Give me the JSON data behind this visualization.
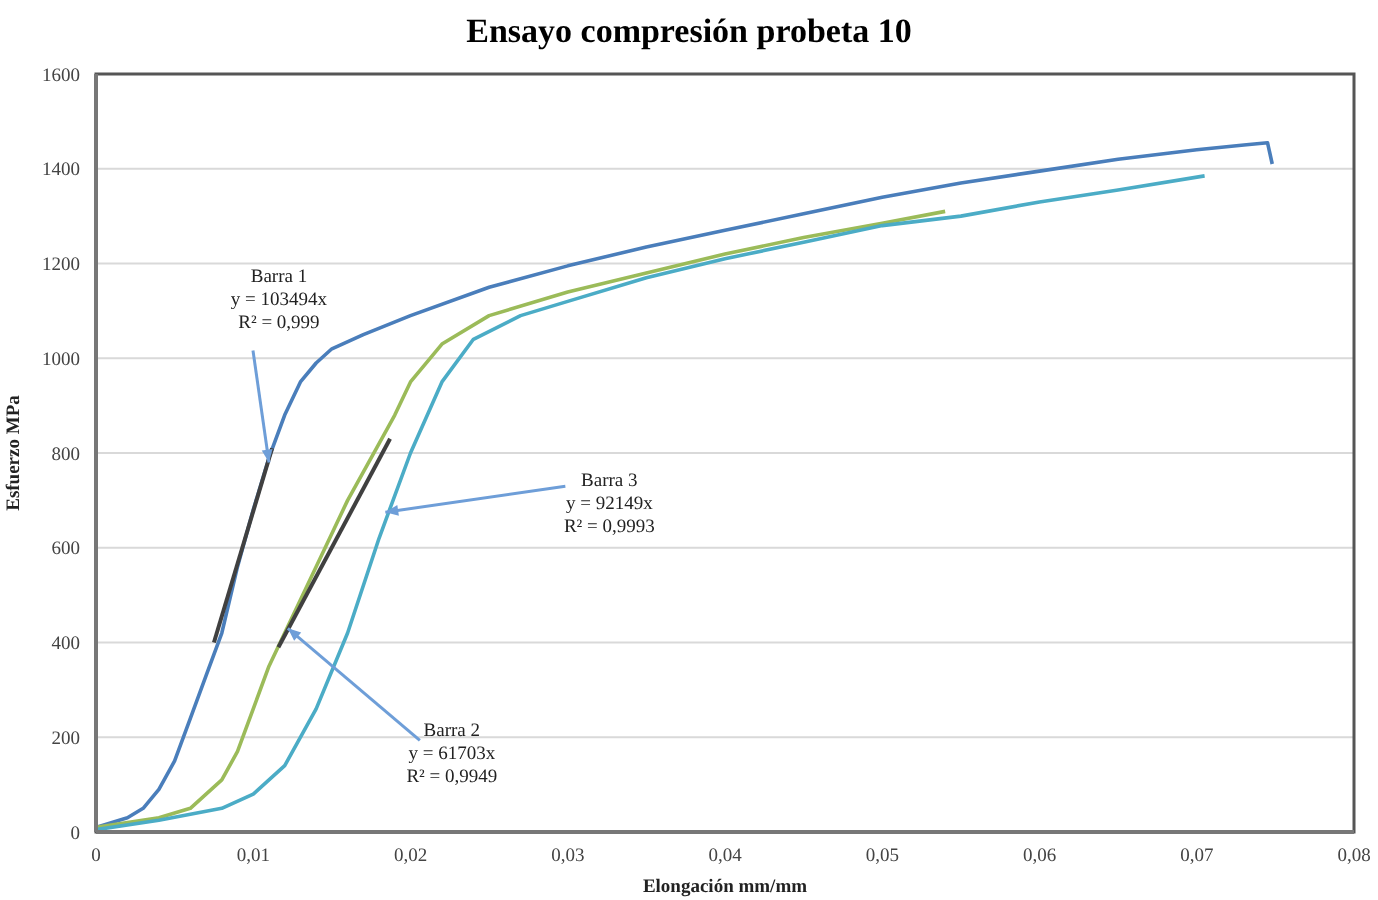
{
  "chart_data": {
    "type": "line",
    "title": "Ensayo compresión probeta 10",
    "xlabel": "Elongación mm/mm",
    "ylabel": "Esfuerzo MPa",
    "xlim": [
      0,
      0.08
    ],
    "xticks": [
      {
        "value": 0,
        "label": "0"
      },
      {
        "value": 0.01,
        "label": "0,01"
      },
      {
        "value": 0.02,
        "label": "0,02"
      },
      {
        "value": 0.03,
        "label": "0,03"
      },
      {
        "value": 0.04,
        "label": "0,04"
      },
      {
        "value": 0.05,
        "label": "0,05"
      },
      {
        "value": 0.06,
        "label": "0,06"
      },
      {
        "value": 0.07,
        "label": "0,07"
      },
      {
        "value": 0.08,
        "label": "0,08"
      }
    ],
    "ylim": [
      0,
      1600
    ],
    "yticks": [
      0,
      200,
      400,
      600,
      800,
      1000,
      1200,
      1400,
      1600
    ],
    "grid": "y",
    "legend": false,
    "marker": "none",
    "line_style": "solid",
    "series": [
      {
        "color": "#4a7ebb",
        "x": [
          0,
          0.002,
          0.003,
          0.004,
          0.005,
          0.006,
          0.007,
          0.008,
          0.009,
          0.01,
          0.011,
          0.012,
          0.013,
          0.014,
          0.015,
          0.017,
          0.02,
          0.025,
          0.03,
          0.035,
          0.04,
          0.045,
          0.05,
          0.055,
          0.06,
          0.065,
          0.07,
          0.073,
          0.0745,
          0.0748
        ],
        "values": [
          10,
          30,
          50,
          90,
          150,
          240,
          330,
          420,
          560,
          680,
          790,
          880,
          950,
          990,
          1020,
          1050,
          1090,
          1150,
          1195,
          1235,
          1270,
          1305,
          1340,
          1370,
          1395,
          1420,
          1440,
          1450,
          1455,
          1410
        ]
      },
      {
        "color": "#9bbb59",
        "x": [
          0,
          0.004,
          0.006,
          0.008,
          0.009,
          0.01,
          0.011,
          0.012,
          0.014,
          0.016,
          0.018,
          0.019,
          0.02,
          0.022,
          0.025,
          0.03,
          0.035,
          0.04,
          0.045,
          0.05,
          0.054
        ],
        "values": [
          10,
          30,
          50,
          110,
          170,
          260,
          350,
          420,
          560,
          700,
          820,
          880,
          950,
          1030,
          1090,
          1140,
          1180,
          1220,
          1255,
          1285,
          1310
        ]
      },
      {
        "color": "#4bacc6",
        "x": [
          0,
          0.004,
          0.008,
          0.01,
          0.012,
          0.014,
          0.016,
          0.018,
          0.02,
          0.022,
          0.024,
          0.027,
          0.03,
          0.035,
          0.04,
          0.045,
          0.05,
          0.055,
          0.06,
          0.065,
          0.0705
        ],
        "values": [
          5,
          25,
          50,
          80,
          140,
          260,
          420,
          620,
          800,
          950,
          1040,
          1090,
          1120,
          1170,
          1210,
          1245,
          1280,
          1300,
          1330,
          1355,
          1385
        ]
      },
      {
        "color": "#404040",
        "x": [
          0.0075,
          0.0112
        ],
        "values": [
          400,
          810
        ]
      },
      {
        "color": "#404040",
        "x": [
          0.0116,
          0.0187
        ],
        "values": [
          390,
          830
        ]
      }
    ],
    "annotations": [
      {
        "text": "Barra 1\ny = 103494x\nR² = 0,999",
        "x": 0.011,
        "y": 780
      },
      {
        "text": "Barra 3\ny = 92149x\nR² = 0,9993",
        "x": 0.0184,
        "y": 675
      },
      {
        "text": "Barra 2\ny = 61703x\nR² = 0,9949",
        "x": 0.0122,
        "y": 430
      }
    ]
  }
}
